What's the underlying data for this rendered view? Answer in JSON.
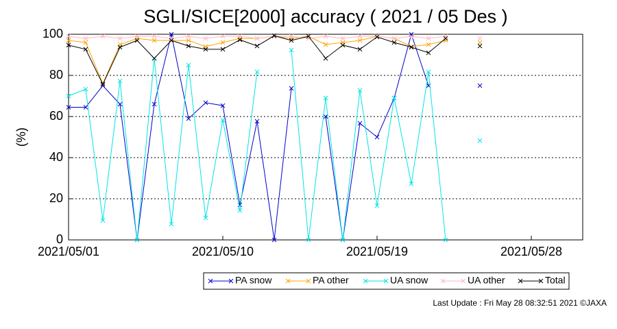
{
  "chart_data": {
    "type": "line",
    "title": "SGLI/SICE[2000] accuracy ( 2021 / 05 Des )",
    "y_label": "(%)",
    "footer": "Last Update : Fri May 28 08:32:51 2021  ©JAXA",
    "x": [
      "2021/05/01",
      "2021/05/02",
      "2021/05/03",
      "2021/05/04",
      "2021/05/05",
      "2021/05/06",
      "2021/05/07",
      "2021/05/08",
      "2021/05/09",
      "2021/05/10",
      "2021/05/11",
      "2021/05/12",
      "2021/05/13",
      "2021/05/14",
      "2021/05/15",
      "2021/05/16",
      "2021/05/17",
      "2021/05/18",
      "2021/05/19",
      "2021/05/20",
      "2021/05/21",
      "2021/05/22",
      "2021/05/23",
      "2021/05/24",
      "2021/05/25"
    ],
    "xlim": [
      "2021/05/01",
      "2021/05/31"
    ],
    "xticks": [
      "2021/05/01",
      "2021/05/10",
      "2021/05/19",
      "2021/05/28"
    ],
    "ylim": [
      0,
      100
    ],
    "yticks": [
      0,
      20,
      40,
      60,
      80,
      100
    ],
    "grid": true,
    "legend": "bottom",
    "series": [
      {
        "name": "PA snow",
        "color": "#0000cc",
        "values": [
          64.5,
          64.5,
          75,
          66,
          0,
          66,
          100,
          59,
          66.7,
          65.3,
          17,
          57.7,
          0,
          73.7,
          null,
          60,
          0,
          56.7,
          50,
          69,
          100,
          75,
          null,
          null,
          75
        ]
      },
      {
        "name": "PA other",
        "color": "#ffa500",
        "values": [
          97,
          96,
          76,
          95,
          98,
          97,
          97,
          97,
          94,
          96,
          98,
          98,
          99,
          98,
          99,
          95,
          96,
          97,
          99,
          98,
          94,
          95,
          97,
          null,
          96
        ]
      },
      {
        "name": "UA snow",
        "color": "#00e5e5",
        "values": [
          70,
          73.3,
          9.5,
          77.3,
          0,
          88.3,
          7.7,
          85,
          10.7,
          58.3,
          14.3,
          81.7,
          null,
          92.3,
          0,
          69,
          0,
          72.7,
          16.7,
          69,
          27.3,
          81.7,
          0,
          null,
          48.3
        ]
      },
      {
        "name": "UA other",
        "color": "#ffb6c1",
        "values": [
          99,
          98,
          99,
          98,
          99,
          99,
          98,
          99,
          98,
          99,
          99,
          98,
          99,
          99,
          98,
          99,
          98,
          99,
          99,
          98,
          99,
          98,
          99,
          null,
          98
        ]
      },
      {
        "name": "Total",
        "color": "#000000",
        "values": [
          94.7,
          92.7,
          75.7,
          93.7,
          97,
          88.3,
          97,
          94.3,
          92.7,
          92.7,
          97.3,
          94.3,
          99.3,
          97,
          99,
          88.3,
          94.7,
          92.7,
          98.7,
          96,
          93.7,
          91,
          98,
          null,
          94.3
        ]
      }
    ]
  }
}
